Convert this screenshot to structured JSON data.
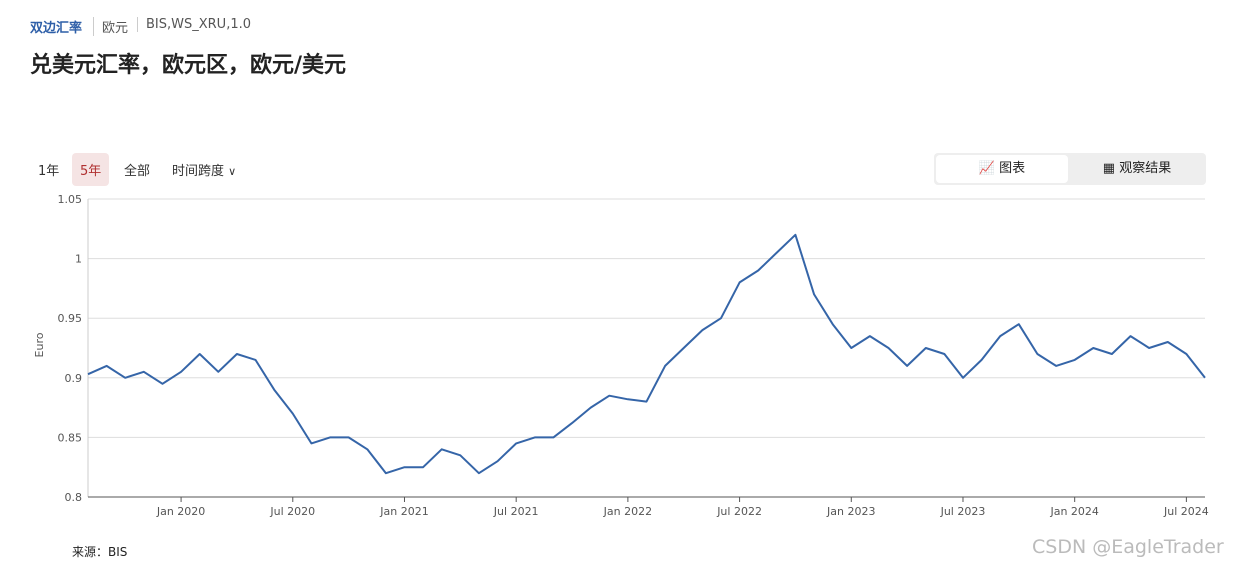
{
  "header": {
    "breadcrumb": [
      "双边汇率",
      "欧元",
      "BIS,WS_XRU,1.0"
    ],
    "title": "兑美元汇率，欧元区，欧元/美元"
  },
  "controls": {
    "ranges": [
      "1年",
      "5年",
      "全部"
    ],
    "span": "时间跨度",
    "tabs": [
      "图表",
      "观察结果"
    ]
  },
  "chart_data": {
    "type": "line",
    "ylabel": "Euro",
    "color": "#3565a8",
    "grid": true,
    "x": [
      "2019-08",
      "2019-09",
      "2019-10",
      "2019-11",
      "2019-12",
      "2020-01",
      "2020-02",
      "2020-03",
      "2020-04",
      "2020-05",
      "2020-06",
      "2020-07",
      "2020-08",
      "2020-09",
      "2020-10",
      "2020-11",
      "2020-12",
      "2021-01",
      "2021-02",
      "2021-03",
      "2021-04",
      "2021-05",
      "2021-06",
      "2021-07",
      "2021-08",
      "2021-09",
      "2021-10",
      "2021-11",
      "2021-12",
      "2022-01",
      "2022-02",
      "2022-03",
      "2022-04",
      "2022-05",
      "2022-06",
      "2022-07",
      "2022-08",
      "2022-09",
      "2022-10",
      "2022-11",
      "2022-12",
      "2023-01",
      "2023-02",
      "2023-03",
      "2023-04",
      "2023-05",
      "2023-06",
      "2023-07",
      "2023-08",
      "2023-09",
      "2023-10",
      "2023-11",
      "2023-12",
      "2024-01",
      "2024-02",
      "2024-03",
      "2024-04",
      "2024-05",
      "2024-06",
      "2024-07",
      "2024-08"
    ],
    "values": [
      0.903,
      0.91,
      0.9,
      0.905,
      0.895,
      0.905,
      0.92,
      0.905,
      0.92,
      0.915,
      0.89,
      0.87,
      0.845,
      0.85,
      0.85,
      0.84,
      0.82,
      0.825,
      0.825,
      0.84,
      0.835,
      0.82,
      0.83,
      0.845,
      0.85,
      0.85,
      0.862,
      0.875,
      0.885,
      0.882,
      0.88,
      0.91,
      0.925,
      0.94,
      0.95,
      0.98,
      0.99,
      1.005,
      1.02,
      0.97,
      0.945,
      0.925,
      0.935,
      0.925,
      0.91,
      0.925,
      0.92,
      0.9,
      0.915,
      0.935,
      0.945,
      0.92,
      0.91,
      0.915,
      0.925,
      0.92,
      0.935,
      0.925,
      0.93,
      0.92,
      0.9
    ],
    "xlim": [
      "2019-08",
      "2024-08"
    ],
    "xticks": [
      {
        "value": "2020-01",
        "label": "Jan 2020"
      },
      {
        "value": "2020-07",
        "label": "Jul 2020"
      },
      {
        "value": "2021-01",
        "label": "Jan 2021"
      },
      {
        "value": "2021-07",
        "label": "Jul 2021"
      },
      {
        "value": "2022-01",
        "label": "Jan 2022"
      },
      {
        "value": "2022-07",
        "label": "Jul 2022"
      },
      {
        "value": "2023-01",
        "label": "Jan 2023"
      },
      {
        "value": "2023-07",
        "label": "Jul 2023"
      },
      {
        "value": "2024-01",
        "label": "Jan 2024"
      },
      {
        "value": "2024-07",
        "label": "Jul 2024"
      }
    ],
    "ylim": [
      0.8,
      1.05
    ],
    "yticks": [
      0.8,
      0.85,
      0.9,
      0.95,
      1,
      1.05
    ]
  },
  "source": "来源：BIS",
  "watermark": "CSDN @EagleTrader"
}
